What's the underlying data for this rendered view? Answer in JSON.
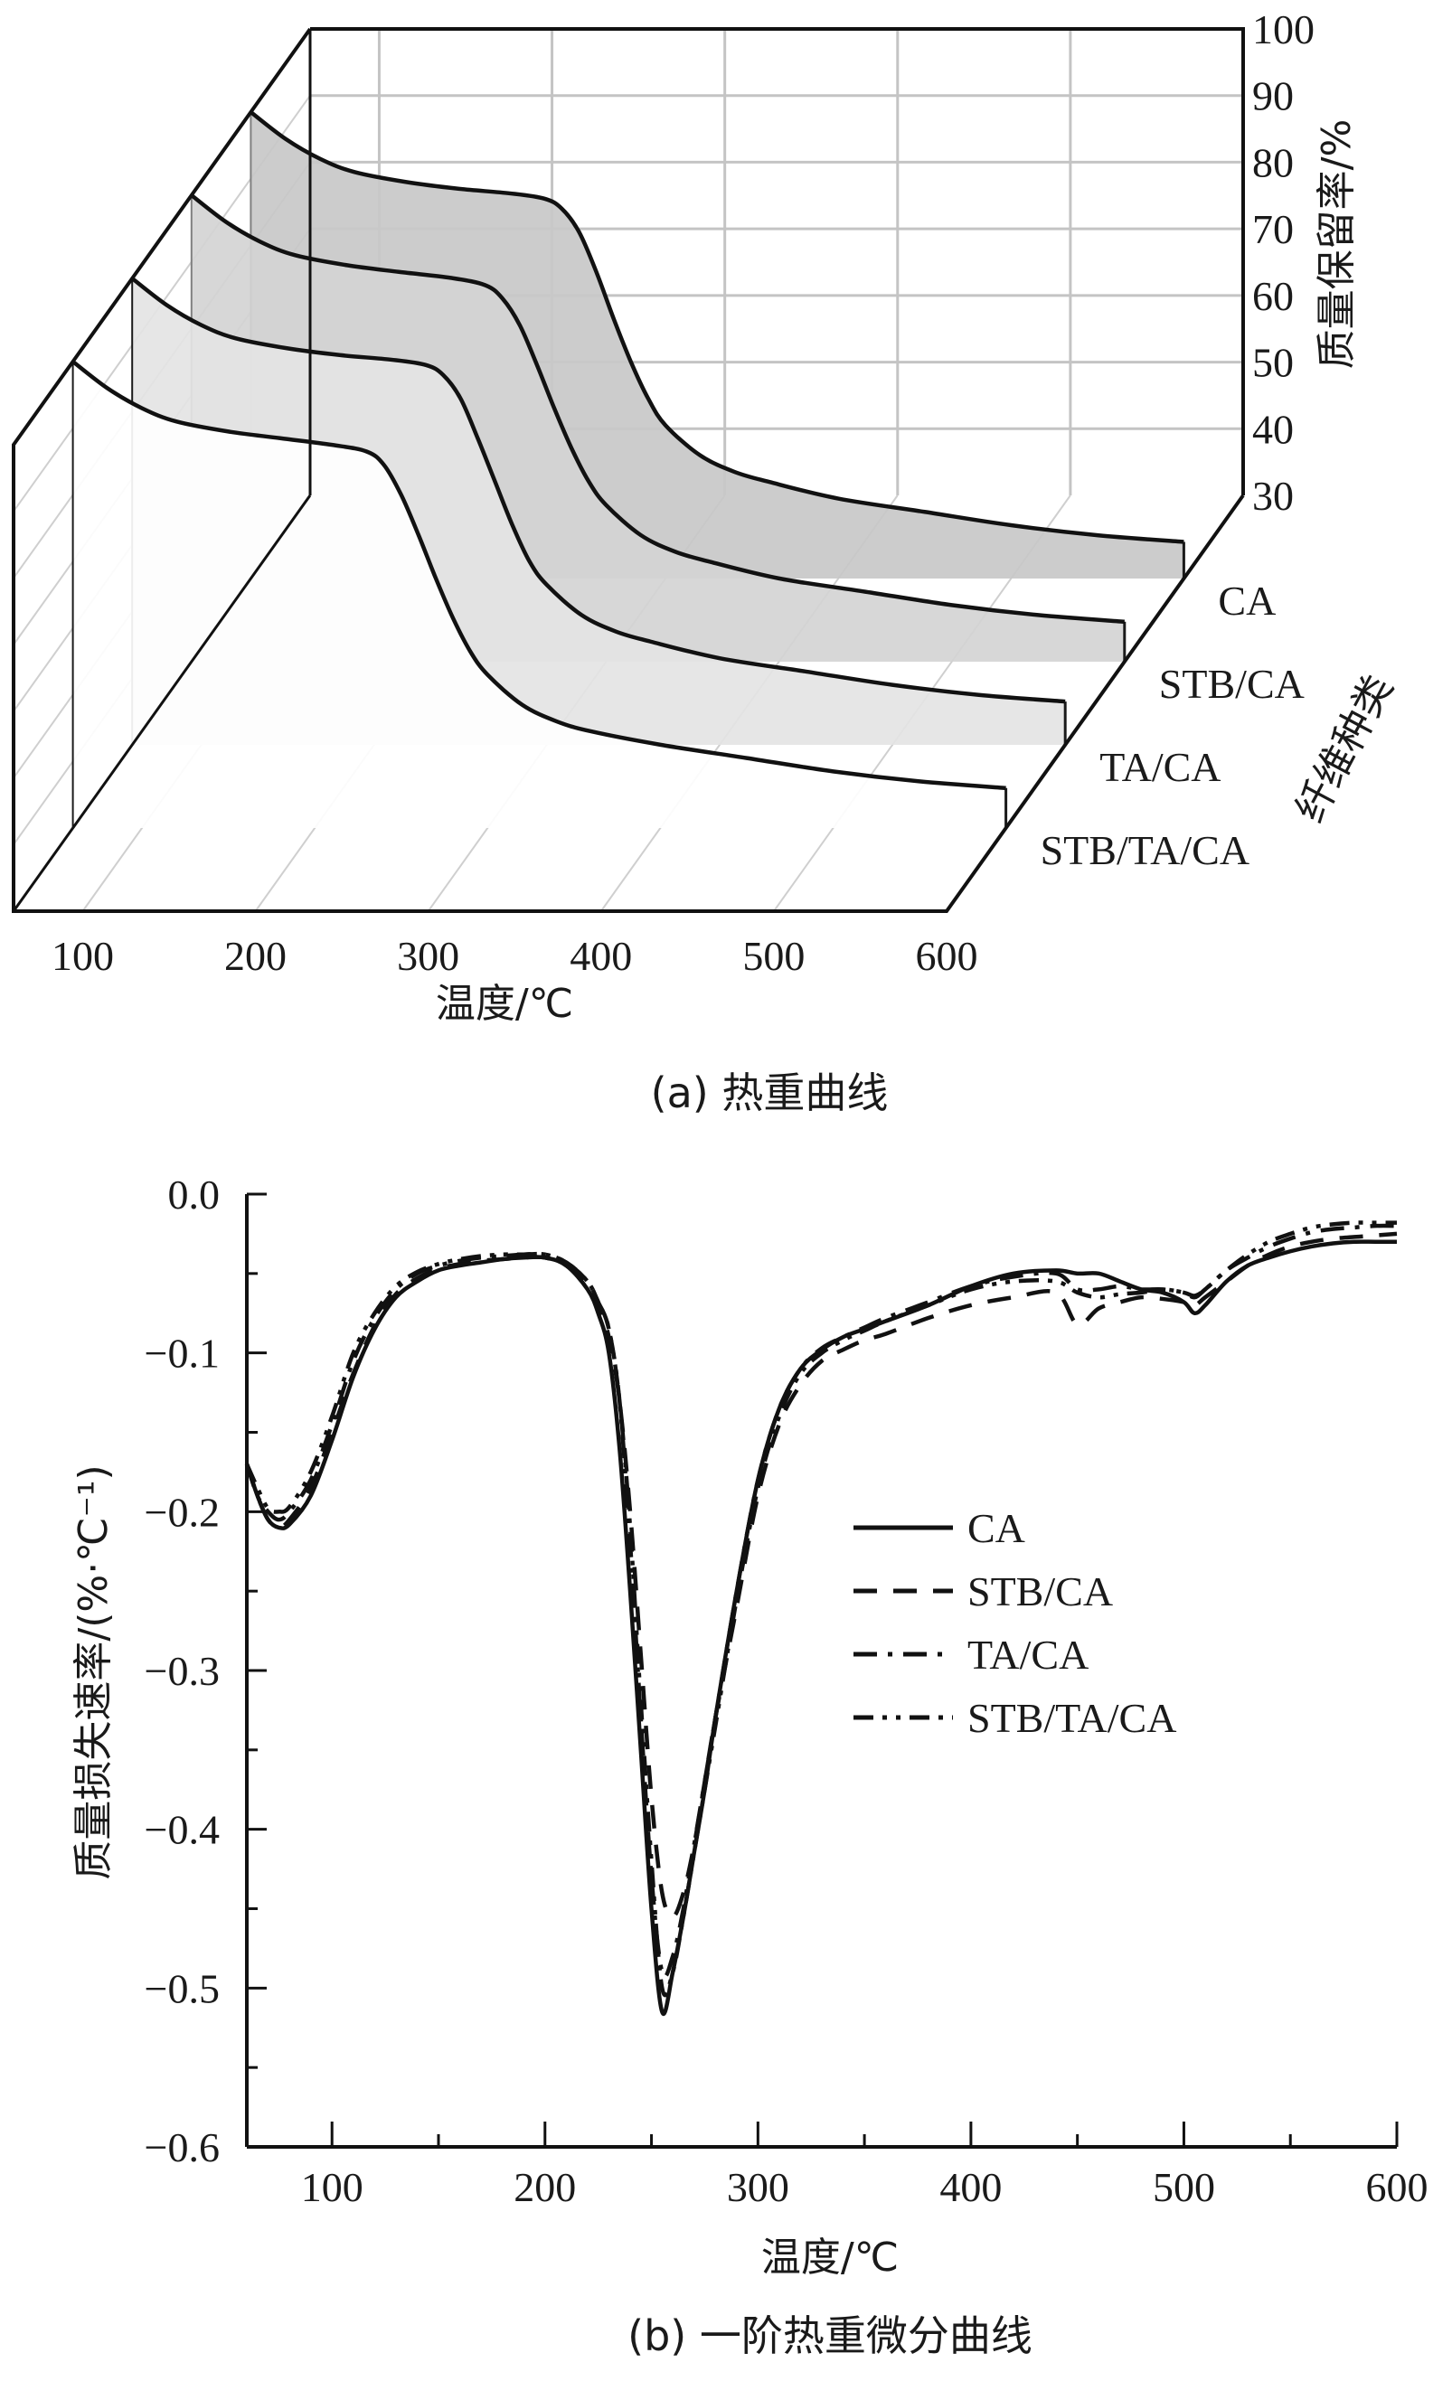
{
  "chart_data": [
    {
      "id": "a",
      "type": "line",
      "subtype": "3d-waterfall",
      "caption": "(a) 热重曲线",
      "xlabel": "温度/℃",
      "ylabel": "质量保留率/%",
      "zlabel": "纤维种类",
      "xlim": [
        60,
        600
      ],
      "ylim": [
        30,
        100
      ],
      "xticks": [
        "100",
        "200",
        "300",
        "400",
        "500",
        "600"
      ],
      "yticks": [
        "30",
        "40",
        "50",
        "60",
        "70",
        "80",
        "90",
        "100"
      ],
      "categories": [
        "CA",
        "STB/CA",
        "TA/CA",
        "STB/TA/CA"
      ],
      "grid": true,
      "x": [
        60,
        80,
        100,
        120,
        150,
        180,
        210,
        230,
        240,
        250,
        260,
        270,
        280,
        290,
        300,
        320,
        340,
        360,
        400,
        450,
        500,
        550,
        600
      ],
      "series": [
        {
          "name": "CA",
          "fill": "#c8c8c8",
          "values": [
            100,
            96,
            93,
            91,
            89.5,
            88.5,
            87.8,
            87,
            85.5,
            82,
            76,
            69,
            62.5,
            57,
            53,
            48.5,
            46,
            44.5,
            42,
            40,
            38,
            36.5,
            35.5
          ]
        },
        {
          "name": "STB/CA",
          "fill": "#d4d4d4",
          "values": [
            100,
            96,
            93,
            91,
            89.5,
            88.5,
            87.6,
            86.5,
            84.5,
            80.5,
            74.5,
            68,
            62,
            57,
            53.5,
            49,
            46.5,
            45,
            42.5,
            40.5,
            38.5,
            37,
            36
          ]
        },
        {
          "name": "TA/CA",
          "fill": "#e4e4e4",
          "values": [
            100,
            96,
            93,
            91,
            89.5,
            88.5,
            87.8,
            87,
            85.5,
            82,
            76,
            69.5,
            63,
            57.5,
            54,
            49.5,
            47,
            45.5,
            43,
            41,
            39,
            37.5,
            36.5
          ]
        },
        {
          "name": "STB/TA/CA",
          "fill": "#ffffff",
          "values": [
            100,
            96,
            93,
            91,
            89.5,
            88.5,
            87.5,
            86.5,
            84.5,
            80,
            74,
            67.5,
            61.5,
            56.5,
            53,
            48.5,
            46,
            44.5,
            42.5,
            40.5,
            38.5,
            37,
            36
          ]
        }
      ]
    },
    {
      "id": "b",
      "type": "line",
      "caption": "(b) 一阶热重微分曲线",
      "xlabel": "温度/℃",
      "ylabel": "质量损失速率/(%·℃⁻¹)",
      "xlim": [
        60,
        600
      ],
      "ylim": [
        -0.6,
        0.0
      ],
      "xticks": [
        "100",
        "200",
        "300",
        "400",
        "500",
        "600"
      ],
      "yticks": [
        "0.0",
        "−0.1",
        "−0.2",
        "−0.3",
        "−0.4",
        "−0.5",
        "−0.6"
      ],
      "legend_position": "center-right",
      "grid": false,
      "x": [
        60,
        65,
        70,
        75,
        80,
        90,
        100,
        110,
        120,
        130,
        140,
        150,
        160,
        170,
        180,
        190,
        200,
        210,
        220,
        225,
        230,
        235,
        240,
        245,
        250,
        255,
        260,
        265,
        270,
        275,
        280,
        290,
        300,
        310,
        320,
        330,
        340,
        350,
        360,
        380,
        400,
        420,
        440,
        450,
        460,
        470,
        480,
        490,
        500,
        505,
        510,
        520,
        530,
        540,
        550,
        560,
        570,
        580,
        590,
        600
      ],
      "series": [
        {
          "name": "CA",
          "dash": "solid",
          "values": [
            -0.17,
            -0.19,
            -0.205,
            -0.21,
            -0.208,
            -0.19,
            -0.155,
            -0.115,
            -0.085,
            -0.065,
            -0.055,
            -0.048,
            -0.045,
            -0.043,
            -0.041,
            -0.04,
            -0.04,
            -0.045,
            -0.06,
            -0.075,
            -0.1,
            -0.16,
            -0.25,
            -0.35,
            -0.45,
            -0.515,
            -0.49,
            -0.455,
            -0.415,
            -0.375,
            -0.33,
            -0.25,
            -0.18,
            -0.135,
            -0.11,
            -0.098,
            -0.09,
            -0.085,
            -0.08,
            -0.07,
            -0.058,
            -0.05,
            -0.048,
            -0.05,
            -0.05,
            -0.055,
            -0.06,
            -0.062,
            -0.068,
            -0.075,
            -0.07,
            -0.055,
            -0.045,
            -0.04,
            -0.036,
            -0.033,
            -0.031,
            -0.03,
            -0.03,
            -0.03
          ]
        },
        {
          "name": "STB/CA",
          "dash": "dashed",
          "values": [
            -0.17,
            -0.19,
            -0.205,
            -0.21,
            -0.205,
            -0.185,
            -0.15,
            -0.113,
            -0.083,
            -0.063,
            -0.053,
            -0.047,
            -0.044,
            -0.042,
            -0.041,
            -0.04,
            -0.04,
            -0.045,
            -0.058,
            -0.07,
            -0.09,
            -0.13,
            -0.2,
            -0.29,
            -0.38,
            -0.44,
            -0.455,
            -0.44,
            -0.41,
            -0.37,
            -0.33,
            -0.26,
            -0.19,
            -0.145,
            -0.12,
            -0.105,
            -0.098,
            -0.092,
            -0.088,
            -0.078,
            -0.07,
            -0.065,
            -0.062,
            -0.082,
            -0.072,
            -0.068,
            -0.065,
            -0.066,
            -0.068,
            -0.07,
            -0.065,
            -0.055,
            -0.045,
            -0.038,
            -0.033,
            -0.03,
            -0.028,
            -0.027,
            -0.026,
            -0.025
          ]
        },
        {
          "name": "TA/CA",
          "dash": "dashdot",
          "values": [
            -0.17,
            -0.19,
            -0.2,
            -0.205,
            -0.2,
            -0.18,
            -0.145,
            -0.105,
            -0.078,
            -0.06,
            -0.05,
            -0.045,
            -0.042,
            -0.04,
            -0.039,
            -0.038,
            -0.038,
            -0.043,
            -0.055,
            -0.068,
            -0.085,
            -0.13,
            -0.22,
            -0.33,
            -0.43,
            -0.49,
            -0.48,
            -0.45,
            -0.41,
            -0.37,
            -0.33,
            -0.25,
            -0.18,
            -0.135,
            -0.11,
            -0.097,
            -0.09,
            -0.084,
            -0.078,
            -0.068,
            -0.058,
            -0.052,
            -0.05,
            -0.06,
            -0.06,
            -0.058,
            -0.06,
            -0.06,
            -0.062,
            -0.065,
            -0.06,
            -0.048,
            -0.04,
            -0.033,
            -0.028,
            -0.024,
            -0.022,
            -0.021,
            -0.02,
            -0.02
          ]
        },
        {
          "name": "STB/TA/CA",
          "dash": "dashdotdot",
          "values": [
            -0.17,
            -0.185,
            -0.198,
            -0.2,
            -0.197,
            -0.175,
            -0.14,
            -0.1,
            -0.075,
            -0.058,
            -0.049,
            -0.044,
            -0.041,
            -0.039,
            -0.038,
            -0.038,
            -0.038,
            -0.043,
            -0.055,
            -0.068,
            -0.085,
            -0.13,
            -0.21,
            -0.32,
            -0.42,
            -0.5,
            -0.49,
            -0.455,
            -0.415,
            -0.375,
            -0.335,
            -0.255,
            -0.185,
            -0.14,
            -0.113,
            -0.1,
            -0.092,
            -0.086,
            -0.08,
            -0.07,
            -0.06,
            -0.055,
            -0.055,
            -0.062,
            -0.065,
            -0.063,
            -0.062,
            -0.06,
            -0.062,
            -0.064,
            -0.06,
            -0.048,
            -0.038,
            -0.03,
            -0.025,
            -0.021,
            -0.019,
            -0.018,
            -0.018,
            -0.018
          ]
        }
      ]
    }
  ]
}
